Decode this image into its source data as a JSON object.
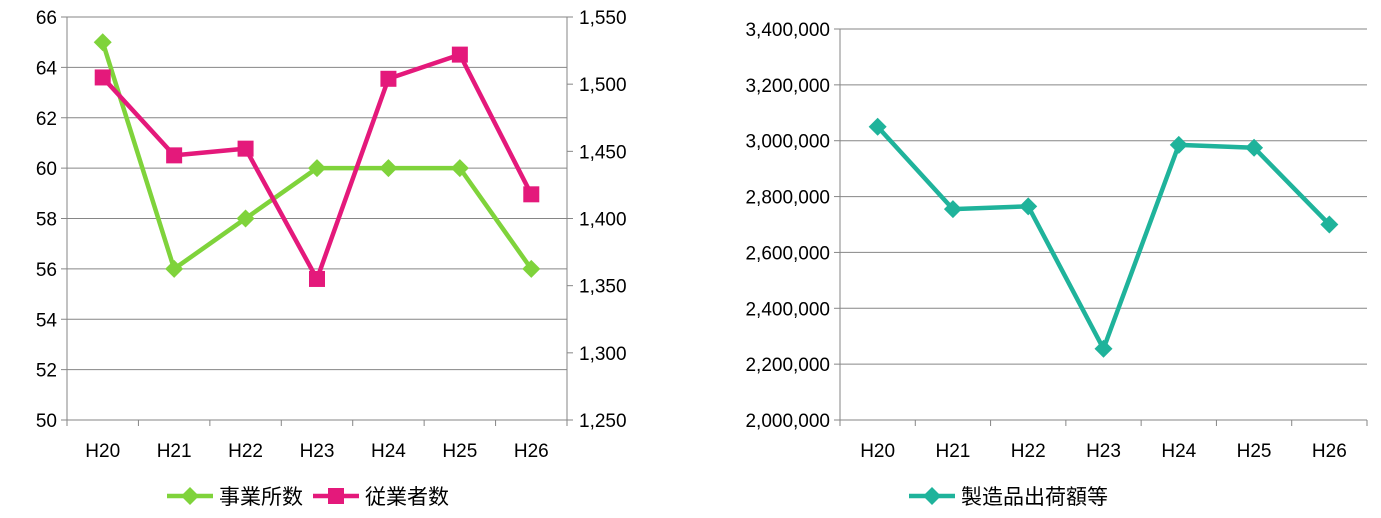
{
  "colors": {
    "establishments": "#7fd33b",
    "employees": "#e4197b",
    "shipments": "#1fb39b",
    "grid": "#868686",
    "axis": "#868686"
  },
  "chart_data": [
    {
      "type": "line",
      "title": "",
      "categories": [
        "H20",
        "H21",
        "H22",
        "H23",
        "H24",
        "H25",
        "H26"
      ],
      "grid": true,
      "legend_position": "bottom",
      "y_left": {
        "min": 50,
        "max": 66,
        "step": 2,
        "ticks": [
          "50",
          "52",
          "54",
          "56",
          "58",
          "60",
          "62",
          "64",
          "66"
        ]
      },
      "y_right": {
        "min": 1250,
        "max": 1550,
        "step": 50,
        "ticks": [
          "1,250",
          "1,300",
          "1,350",
          "1,400",
          "1,450",
          "1,500",
          "1,550"
        ]
      },
      "series": [
        {
          "name": "事業所数",
          "axis": "left",
          "marker": "diamond",
          "values": [
            65,
            56,
            58,
            60,
            60,
            60,
            56
          ]
        },
        {
          "name": "従業者数",
          "axis": "right",
          "marker": "square",
          "values": [
            1505,
            1447,
            1452,
            1355,
            1504,
            1522,
            1418
          ]
        }
      ]
    },
    {
      "type": "line",
      "title": "",
      "categories": [
        "H20",
        "H21",
        "H22",
        "H23",
        "H24",
        "H25",
        "H26"
      ],
      "grid": true,
      "legend_position": "bottom",
      "y_left": {
        "min": 2000000,
        "max": 3400000,
        "step": 200000,
        "ticks": [
          "2,000,000",
          "2,200,000",
          "2,400,000",
          "2,600,000",
          "2,800,000",
          "3,000,000",
          "3,200,000",
          "3,400,000"
        ]
      },
      "series": [
        {
          "name": "製造品出荷額等",
          "axis": "left",
          "marker": "diamond",
          "values": [
            3050000,
            2755000,
            2765000,
            2255000,
            2985000,
            2975000,
            2700000
          ]
        }
      ]
    }
  ]
}
